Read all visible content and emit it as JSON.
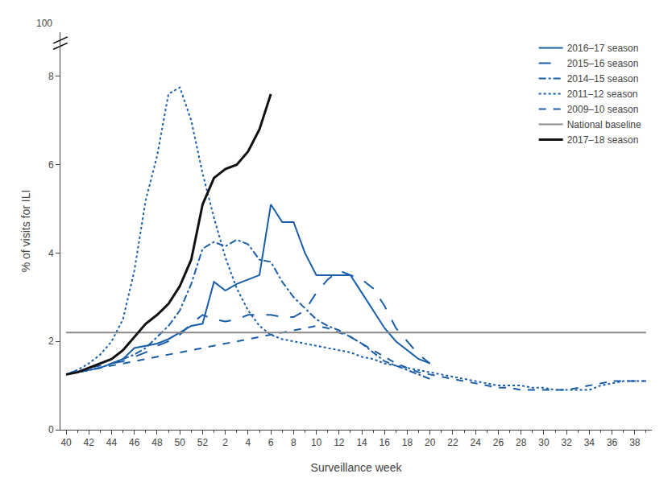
{
  "chart_data": {
    "type": "line",
    "xlabel": "Surveillance week",
    "ylabel": "% of visits for ILI",
    "categories": [
      40,
      null,
      42,
      null,
      44,
      null,
      46,
      null,
      48,
      null,
      50,
      null,
      52,
      null,
      2,
      null,
      4,
      null,
      6,
      null,
      8,
      null,
      10,
      null,
      12,
      null,
      14,
      null,
      16,
      null,
      18,
      null,
      20,
      null,
      22,
      null,
      24,
      null,
      26,
      null,
      28,
      null,
      30,
      null,
      32,
      null,
      34,
      null,
      36,
      null,
      38,
      null
    ],
    "ylim": [
      0,
      9
    ],
    "yticks": [
      0,
      2,
      4,
      6,
      8
    ],
    "grid": false,
    "legend": "upper right",
    "annotations": [
      "100"
    ],
    "series": [
      {
        "name": "2016–17 season",
        "color": "#1a5ea8",
        "line_style": "solid",
        "values": [
          1.25,
          1.3,
          1.35,
          1.4,
          1.5,
          1.6,
          1.85,
          1.9,
          1.95,
          2.05,
          2.2,
          2.35,
          2.4,
          3.35,
          3.15,
          3.3,
          3.4,
          3.5,
          5.1,
          4.7,
          4.7,
          4.0,
          3.5,
          3.5,
          3.5,
          3.5,
          3.1,
          2.7,
          2.3,
          2.0,
          1.8,
          1.6,
          1.5,
          null,
          null,
          null,
          null,
          null,
          null,
          null,
          null,
          null,
          null,
          null,
          null,
          null,
          null,
          null,
          null,
          null,
          null,
          null
        ]
      },
      {
        "name": "2015–16 season",
        "color": "#1a5ea8",
        "line_style": "longdash",
        "values": [
          1.25,
          1.35,
          1.4,
          1.45,
          1.5,
          1.55,
          1.65,
          1.75,
          1.9,
          2.0,
          2.15,
          2.4,
          2.6,
          2.5,
          2.45,
          2.5,
          2.6,
          2.6,
          2.6,
          2.55,
          2.55,
          2.7,
          3.1,
          3.4,
          3.6,
          3.5,
          3.4,
          3.2,
          2.8,
          2.3,
          2.0,
          1.7,
          1.5,
          null,
          null,
          null,
          null,
          null,
          null,
          null,
          null,
          null,
          null,
          null,
          null,
          null,
          null,
          null,
          null,
          null,
          null,
          null
        ]
      },
      {
        "name": "2014–15 season",
        "color": "#1a5ea8",
        "line_style": "dashdot",
        "values": [
          1.25,
          1.3,
          1.35,
          1.4,
          1.5,
          1.6,
          1.7,
          1.85,
          2.1,
          2.35,
          2.7,
          3.3,
          4.1,
          4.25,
          4.15,
          4.3,
          4.2,
          3.85,
          3.8,
          3.35,
          3.0,
          2.75,
          2.5,
          2.35,
          2.25,
          2.1,
          1.95,
          1.75,
          1.55,
          1.45,
          1.35,
          1.25,
          1.15,
          null,
          null,
          null,
          null,
          null,
          null,
          null,
          null,
          null,
          null,
          null,
          null,
          null,
          null,
          null,
          null,
          null,
          null,
          null
        ]
      },
      {
        "name": "2011–12 season",
        "color": "#1a5ea8",
        "line_style": "dot",
        "values": [
          1.25,
          1.35,
          1.5,
          1.7,
          2.0,
          2.5,
          3.6,
          5.2,
          6.2,
          7.6,
          7.75,
          7.0,
          5.8,
          4.8,
          3.9,
          3.2,
          2.7,
          2.35,
          2.15,
          2.05,
          2.0,
          1.95,
          1.9,
          1.85,
          1.8,
          1.75,
          1.65,
          1.6,
          1.5,
          1.45,
          1.4,
          1.35,
          1.3,
          1.25,
          1.2,
          1.15,
          1.1,
          1.05,
          1.0,
          1.0,
          1.0,
          0.95,
          0.95,
          0.9,
          0.9,
          0.9,
          0.9,
          1.0,
          1.05,
          1.1,
          1.1,
          1.1
        ]
      },
      {
        "name": "2009–10 season",
        "color": "#1a5ea8",
        "line_style": "dash",
        "values": [
          1.25,
          1.3,
          1.35,
          1.4,
          1.45,
          1.5,
          1.55,
          1.6,
          1.65,
          1.7,
          1.75,
          1.8,
          1.85,
          1.9,
          1.95,
          2.0,
          2.05,
          2.1,
          2.15,
          2.2,
          2.25,
          2.3,
          2.35,
          2.3,
          2.2,
          2.1,
          1.95,
          1.8,
          1.65,
          1.5,
          1.4,
          1.3,
          1.25,
          1.2,
          1.15,
          1.1,
          1.05,
          1.0,
          0.95,
          0.95,
          0.9,
          0.9,
          0.9,
          0.9,
          0.9,
          0.95,
          1.0,
          1.05,
          1.1,
          1.1,
          1.1,
          1.1
        ]
      },
      {
        "name": "National baseline",
        "color": "#888888",
        "line_style": "solid",
        "values": [
          2.2,
          2.2,
          2.2,
          2.2,
          2.2,
          2.2,
          2.2,
          2.2,
          2.2,
          2.2,
          2.2,
          2.2,
          2.2,
          2.2,
          2.2,
          2.2,
          2.2,
          2.2,
          2.2,
          2.2,
          2.2,
          2.2,
          2.2,
          2.2,
          2.2,
          2.2,
          2.2,
          2.2,
          2.2,
          2.2,
          2.2,
          2.2,
          2.2,
          2.2,
          2.2,
          2.2,
          2.2,
          2.2,
          2.2,
          2.2,
          2.2,
          2.2,
          2.2,
          2.2,
          2.2,
          2.2,
          2.2,
          2.2,
          2.2,
          2.2,
          2.2,
          2.2
        ]
      },
      {
        "name": "2017–18 season",
        "color": "#111111",
        "line_style": "solid",
        "values": [
          1.25,
          1.3,
          1.4,
          1.5,
          1.6,
          1.8,
          2.1,
          2.4,
          2.6,
          2.85,
          3.25,
          3.85,
          5.1,
          5.7,
          5.9,
          6.0,
          6.3,
          6.8,
          7.6,
          null,
          null,
          null,
          null,
          null,
          null,
          null,
          null,
          null,
          null,
          null,
          null,
          null,
          null,
          null,
          null,
          null,
          null,
          null,
          null,
          null,
          null,
          null,
          null,
          null,
          null,
          null,
          null,
          null,
          null,
          null,
          null,
          null
        ]
      }
    ]
  }
}
